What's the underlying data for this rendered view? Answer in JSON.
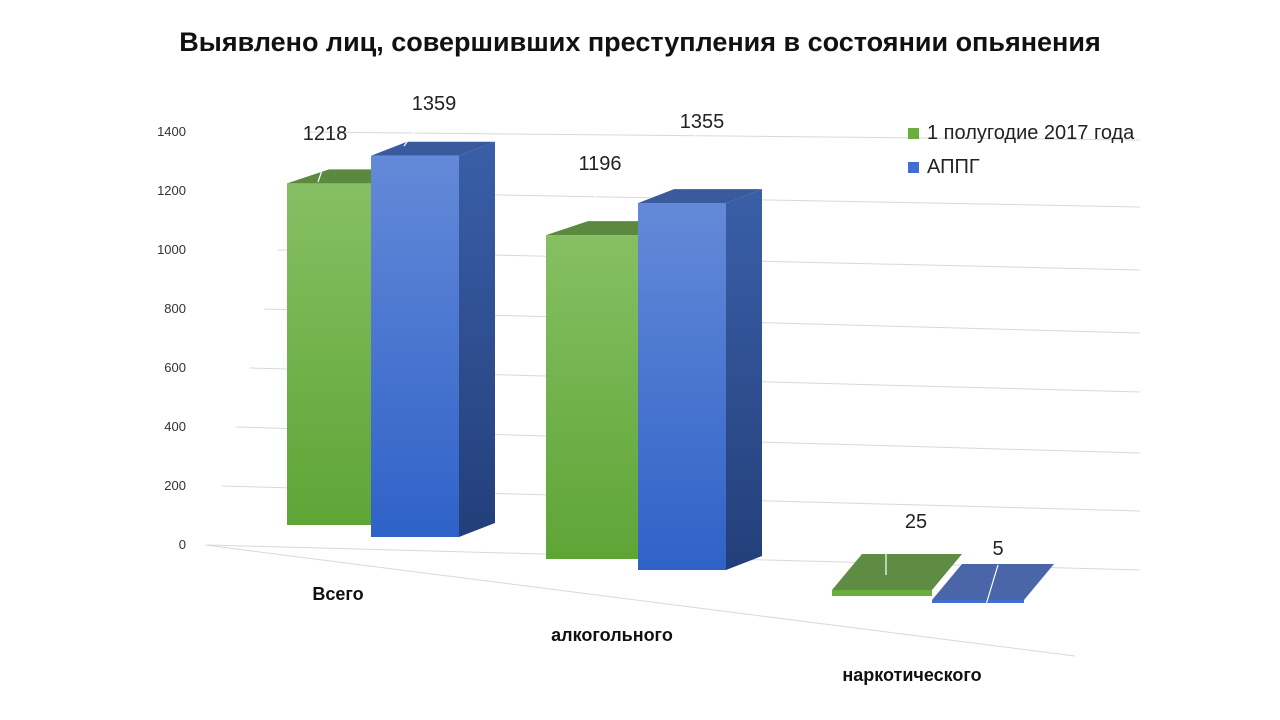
{
  "chart_data": {
    "type": "bar",
    "title": "Выявлено лиц, совершивших преступления в состоянии опьянения",
    "categories": [
      "Всего",
      "алкогольного",
      "наркотического"
    ],
    "series": [
      {
        "name": "1 полугодие 2017 года",
        "values": [
          1218,
          1196,
          25
        ],
        "color": "#6aaf3d"
      },
      {
        "name": "АППГ",
        "values": [
          1359,
          1355,
          5
        ],
        "color": "#3f6fd0"
      }
    ],
    "ylim": [
      0,
      1400
    ],
    "yticks": [
      "0",
      "200",
      "400",
      "600",
      "800",
      "1000",
      "1200",
      "1400"
    ],
    "grid": true,
    "legend_position": "top-right",
    "style": "3d-clustered-column"
  }
}
